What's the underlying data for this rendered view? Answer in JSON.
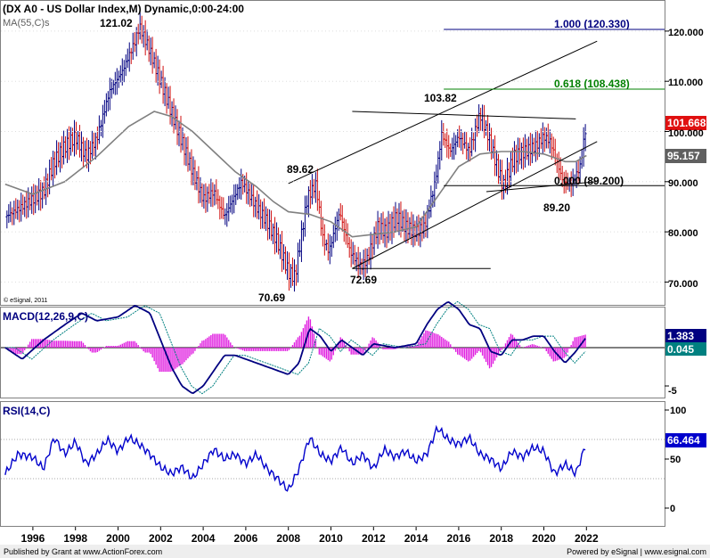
{
  "colors": {
    "up_bar": "#000080",
    "down_bar": "#d01010",
    "ma": "#808080",
    "macd_line": "#000080",
    "signal_line": "#008080",
    "histogram": "#e020e0",
    "rsi_line": "#0000cc",
    "fib_100": "#000080",
    "fib_618": "#008000",
    "price_box": "#e01010",
    "ma_box": "#606060",
    "macd_box": "#000080",
    "signal_box": "#008080",
    "rsi_box": "#0000cc"
  },
  "price_panel": {
    "title": "(DX A0 - US Dollar Index,M) Dynamic,0:00-24:00",
    "ma_label": "MA(55,C)s",
    "credit": "© eSignal, 2011",
    "last_price": "101.668",
    "ma_value": "95.157",
    "y_ticks": [
      "120.000",
      "110.000",
      "100.000",
      "90.000",
      "80.000",
      "70.000"
    ],
    "annotations": {
      "high_2001": "121.02",
      "low_2008": "70.69",
      "high_2008": "89.62",
      "low_2011": "72.69",
      "high_2016": "103.82",
      "low_2021": "89.20",
      "fib_0": "0.000 (89.200)",
      "fib_618": "0.618 (108.438)",
      "fib_100": "1.000 (120.330)"
    }
  },
  "macd_panel": {
    "title": "MACD(12,26,9,C)",
    "macd_value": "1.383",
    "signal_value": "0.045",
    "y_tick": "-5"
  },
  "rsi_panel": {
    "title": "RSI(14,C)",
    "value": "66.464",
    "y_ticks": [
      "100",
      "50",
      "0"
    ]
  },
  "x_axis": {
    "labels": [
      "1996",
      "1998",
      "2000",
      "2002",
      "2004",
      "2006",
      "2008",
      "2010",
      "2012",
      "2014",
      "2016",
      "2018",
      "2020",
      "2022"
    ]
  },
  "footer": {
    "left": "Published by Grant at www.ActionForex.com",
    "right": "Powered by eSignal | www.esignal.com"
  },
  "chart_data": {
    "type": "line",
    "title": "(DX A0 - US Dollar Index,M) Dynamic,0:00-24:00",
    "x_range": [
      1994.7,
      2022.0
    ],
    "price": {
      "x": [
        1994.7,
        1995.3,
        1996.0,
        1996.5,
        1997.0,
        1997.5,
        1998.0,
        1998.5,
        1999.0,
        1999.6,
        2000.2,
        2000.8,
        2001.0,
        2001.5,
        2002.0,
        2002.5,
        2003.0,
        2003.5,
        2004.0,
        2004.5,
        2005.0,
        2005.8,
        2006.5,
        2007.0,
        2007.5,
        2008.0,
        2008.3,
        2008.9,
        2009.3,
        2009.6,
        2009.9,
        2010.4,
        2010.9,
        2011.4,
        2011.7,
        2012.2,
        2012.6,
        2013.1,
        2013.5,
        2014.0,
        2014.4,
        2014.9,
        2015.2,
        2015.6,
        2016.0,
        2016.5,
        2017.0,
        2017.4,
        2017.8,
        2018.1,
        2018.6,
        2019.1,
        2019.6,
        2020.0,
        2020.3,
        2020.9,
        2021.3,
        2021.7,
        2022.0
      ],
      "y": [
        83,
        84.5,
        86.5,
        88,
        94,
        97,
        99,
        95,
        98.5,
        108,
        112,
        118,
        121.02,
        116,
        110,
        104,
        98,
        92,
        86.5,
        88,
        83,
        90,
        85,
        82,
        78,
        72,
        71,
        87,
        89.5,
        79,
        76,
        84,
        76,
        73,
        74.5,
        81,
        80,
        83,
        81,
        80,
        81,
        90,
        99.5,
        96,
        99,
        96,
        103.5,
        99,
        93,
        89,
        95,
        96,
        97,
        99,
        98,
        90,
        89.5,
        93,
        101.7
      ],
      "ylim": [
        66,
        125
      ]
    },
    "ma55": {
      "x": [
        1994.7,
        1996.0,
        1997.5,
        1999.0,
        2000.5,
        2001.7,
        2002.5,
        2003.5,
        2004.5,
        2005.5,
        2006.5,
        2007.3,
        2008.0,
        2009.0,
        2010.0,
        2011.0,
        2012.0,
        2013.0,
        2014.0,
        2015.0,
        2016.0,
        2017.0,
        2018.0,
        2019.0,
        2020.0,
        2021.0,
        2021.5,
        2022.0
      ],
      "y": [
        89.5,
        87.5,
        90,
        95,
        101,
        104,
        103,
        100,
        96,
        92,
        89,
        86,
        84,
        83.5,
        82,
        79,
        79.5,
        80,
        81,
        87,
        93,
        95.5,
        96,
        96,
        95.5,
        94,
        94,
        95.2
      ]
    },
    "channel_lines": [
      {
        "name": "",
        "points": [
          [
            2008.0,
            89.62
          ],
          [
            2022.5,
            118
          ]
        ]
      },
      {
        "name": "",
        "points": [
          [
            2011.0,
            72.69
          ],
          [
            2022.5,
            98
          ]
        ]
      },
      {
        "name": "",
        "points": [
          [
            2011.0,
            72.69
          ],
          [
            2017.5,
            72.69
          ]
        ]
      },
      {
        "name": "",
        "points": [
          [
            2011.0,
            104.0
          ],
          [
            2021.5,
            102.5
          ]
        ]
      },
      {
        "name": "",
        "points": [
          [
            2017.3,
            88.0
          ],
          [
            2022.5,
            90
          ]
        ]
      }
    ],
    "fib_levels": [
      {
        "ratio": 0.0,
        "value": 89.2
      },
      {
        "ratio": 0.618,
        "value": 108.438
      },
      {
        "ratio": 1.0,
        "value": 120.33
      }
    ],
    "macd": {
      "x": [
        1994.7,
        1995.5,
        1996.5,
        1997.5,
        1998.3,
        1999.0,
        2000.0,
        2000.8,
        2001.5,
        2002.0,
        2002.5,
        2003.0,
        2003.5,
        2004.0,
        2004.5,
        2005.0,
        2005.5,
        2006.0,
        2006.5,
        2007.0,
        2007.5,
        2008.0,
        2008.5,
        2009.0,
        2009.5,
        2010.0,
        2010.5,
        2011.0,
        2011.5,
        2012.0,
        2013.0,
        2014.0,
        2014.5,
        2015.0,
        2015.5,
        2016.0,
        2016.5,
        2017.0,
        2017.5,
        2018.0,
        2018.5,
        2019.0,
        2019.5,
        2020.0,
        2020.5,
        2021.0,
        2021.5,
        2022.0
      ],
      "y": [
        0,
        -1.5,
        1,
        3,
        4.5,
        3.5,
        4,
        5.5,
        4.5,
        1,
        -2.5,
        -5,
        -6,
        -5,
        -3,
        -1,
        -1,
        -1.5,
        -2,
        -2.5,
        -3,
        -3.5,
        -2,
        2.5,
        1.5,
        -0.5,
        1,
        0,
        -1,
        0.5,
        0,
        0.5,
        3,
        5,
        6,
        5,
        3,
        2.5,
        -0.5,
        -1,
        1,
        1,
        1.5,
        1.5,
        -0.5,
        -2,
        -0.5,
        1.38
      ]
    },
    "macd_signal_value": 0.045,
    "rsi": {
      "x": [
        1994.7,
        1995.3,
        1996.0,
        1996.5,
        1997.0,
        1997.5,
        1998.0,
        1998.5,
        1999.0,
        1999.5,
        2000.0,
        2000.5,
        2001.0,
        2001.5,
        2002.0,
        2002.5,
        2003.0,
        2003.5,
        2004.0,
        2004.5,
        2005.0,
        2005.5,
        2006.0,
        2006.5,
        2007.0,
        2007.5,
        2008.0,
        2008.5,
        2009.0,
        2009.5,
        2010.0,
        2010.5,
        2011.0,
        2011.5,
        2012.0,
        2012.5,
        2013.0,
        2013.5,
        2014.0,
        2014.5,
        2015.0,
        2015.5,
        2016.0,
        2016.5,
        2017.0,
        2017.5,
        2018.0,
        2018.5,
        2019.0,
        2019.5,
        2020.0,
        2020.5,
        2021.0,
        2021.5,
        2022.0
      ],
      "y": [
        35,
        55,
        52,
        40,
        72,
        55,
        68,
        45,
        55,
        70,
        58,
        72,
        65,
        55,
        42,
        35,
        42,
        30,
        45,
        60,
        50,
        55,
        45,
        55,
        40,
        30,
        18,
        40,
        72,
        55,
        48,
        62,
        45,
        55,
        40,
        60,
        52,
        58,
        48,
        55,
        82,
        70,
        65,
        72,
        55,
        50,
        40,
        58,
        52,
        62,
        58,
        35,
        45,
        35,
        66.46
      ],
      "ylim": [
        0,
        100
      ],
      "levels": [
        30,
        70
      ]
    }
  }
}
